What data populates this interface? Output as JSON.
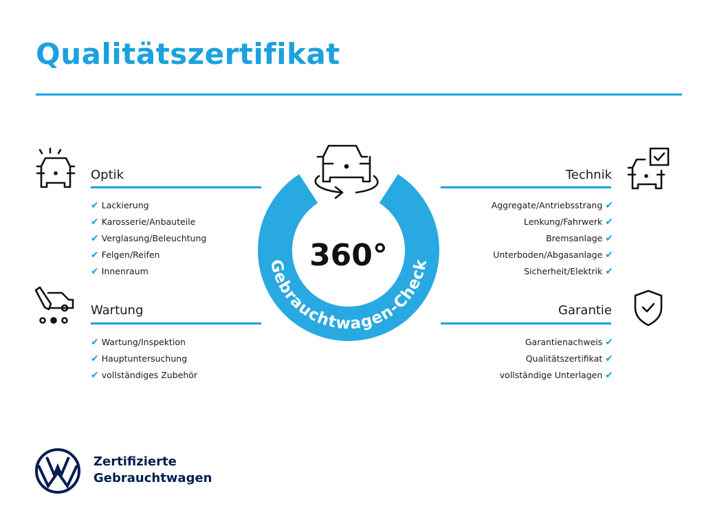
{
  "title": "Qualitätszertifikat",
  "accent_color": "#1ba1df",
  "brand_color": "#001e50",
  "center": {
    "number": "360°",
    "ring_text": "Gebrauchtwagen-Check",
    "icon": "car-rotate-icon"
  },
  "sections": {
    "optik": {
      "title": "Optik",
      "icon": "car-lights-icon",
      "items": [
        "Lackierung",
        "Karosserie/Anbauteile",
        "Verglasung/Beleuchtung",
        "Felgen/Reifen",
        "Innenraum"
      ]
    },
    "wartung": {
      "title": "Wartung",
      "icon": "service-van-icon",
      "items": [
        "Wartung/Inspektion",
        "Hauptuntersuchung",
        "vollständiges Zubehör"
      ]
    },
    "technik": {
      "title": "Technik",
      "icon": "car-checklist-icon",
      "items": [
        "Aggregate/Antriebsstrang",
        "Lenkung/Fahrwerk",
        "Bremsanlage",
        "Unterboden/Abgasanlage",
        "Sicherheit/Elektrik"
      ]
    },
    "garantie": {
      "title": "Garantie",
      "icon": "shield-check-icon",
      "items": [
        "Garantienachweis",
        "Qualitätszertifikat",
        "vollständige Unterlagen"
      ]
    }
  },
  "check_mark": "✔",
  "footer": {
    "line1": "Zertifizierte",
    "line2": "Gebrauchtwagen",
    "logo": "VW"
  }
}
